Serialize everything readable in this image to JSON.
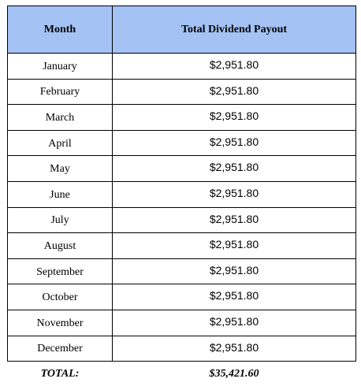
{
  "table": {
    "header": [
      "Month",
      "Total Dividend Payout"
    ],
    "rows": [
      [
        "January",
        "$2,951.80"
      ],
      [
        "February",
        "$2,951.80"
      ],
      [
        "March",
        "$2,951.80"
      ],
      [
        "April",
        "$2,951.80"
      ],
      [
        "May",
        "$2,951.80"
      ],
      [
        "June",
        "$2,951.80"
      ],
      [
        "July",
        "$2,951.80"
      ],
      [
        "August",
        "$2,951.80"
      ],
      [
        "September",
        "$2,951.80"
      ],
      [
        "October",
        "$2,951.80"
      ],
      [
        "November",
        "$2,951.80"
      ],
      [
        "December",
        "$2,951.80"
      ]
    ],
    "total": [
      "TOTAL:",
      "$35,421.60"
    ]
  }
}
